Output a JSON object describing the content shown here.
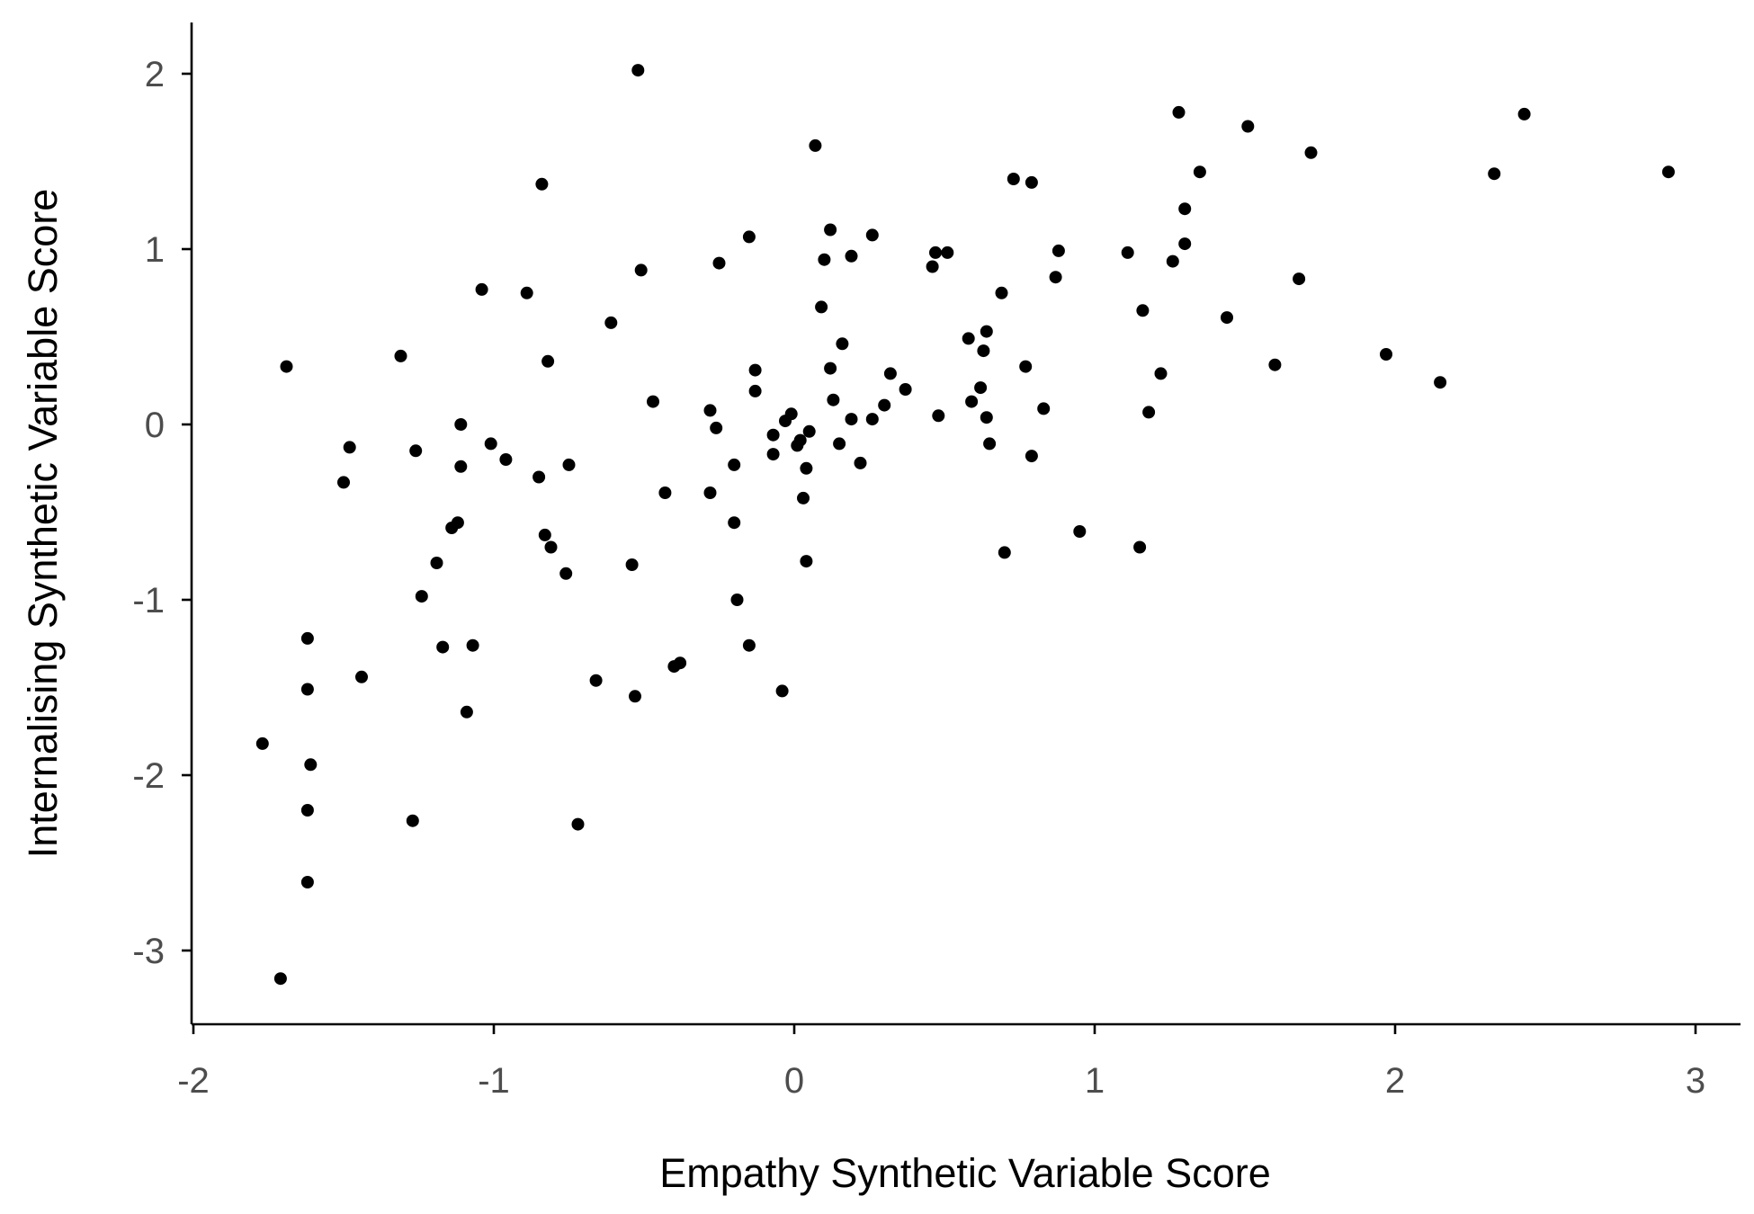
{
  "chart_data": {
    "type": "scatter",
    "title": "",
    "xlabel": "Empathy Synthetic Variable Score",
    "ylabel": "Internalising Synthetic Variable Score",
    "xlim": [
      -2.0,
      3.15
    ],
    "ylim": [
      -3.42,
      2.28
    ],
    "xticks": [
      -2,
      -1,
      0,
      1,
      2,
      3
    ],
    "xtick_labels": [
      "-2",
      "-1",
      "0",
      "1",
      "2",
      "3"
    ],
    "yticks": [
      2,
      1,
      0,
      -1,
      -2,
      -3
    ],
    "ytick_labels": [
      "2",
      "1",
      "0",
      "-1",
      "-2",
      "-3"
    ],
    "grid": false,
    "legend": "none",
    "point_color": "#000000",
    "series": [
      {
        "points": [
          [
            -0.52,
            2.02
          ],
          [
            -0.84,
            1.37
          ],
          [
            0.07,
            1.59
          ],
          [
            -0.51,
            0.88
          ],
          [
            -0.15,
            1.07
          ],
          [
            0.12,
            1.11
          ],
          [
            0.26,
            1.08
          ],
          [
            -0.25,
            0.92
          ],
          [
            0.1,
            0.94
          ],
          [
            0.19,
            0.96
          ],
          [
            0.46,
            0.9
          ],
          [
            0.47,
            0.98
          ],
          [
            0.51,
            0.98
          ],
          [
            0.73,
            1.4
          ],
          [
            0.79,
            1.38
          ],
          [
            1.28,
            1.78
          ],
          [
            1.51,
            1.7
          ],
          [
            1.35,
            1.44
          ],
          [
            1.3,
            1.23
          ],
          [
            1.3,
            1.03
          ],
          [
            1.26,
            0.93
          ],
          [
            1.11,
            0.98
          ],
          [
            0.88,
            0.99
          ],
          [
            0.87,
            0.84
          ],
          [
            1.68,
            0.83
          ],
          [
            1.72,
            1.55
          ],
          [
            2.43,
            1.77
          ],
          [
            2.33,
            1.43
          ],
          [
            2.91,
            1.44
          ],
          [
            1.97,
            0.4
          ],
          [
            2.15,
            0.24
          ],
          [
            1.6,
            0.34
          ],
          [
            1.44,
            0.61
          ],
          [
            1.16,
            0.65
          ],
          [
            1.22,
            0.29
          ],
          [
            1.18,
            0.07
          ],
          [
            -1.69,
            0.33
          ],
          [
            -1.31,
            0.39
          ],
          [
            -1.04,
            0.77
          ],
          [
            -0.89,
            0.75
          ],
          [
            -0.82,
            0.36
          ],
          [
            -0.61,
            0.58
          ],
          [
            -0.47,
            0.13
          ],
          [
            -1.48,
            -0.13
          ],
          [
            -1.5,
            -0.33
          ],
          [
            -1.26,
            -0.15
          ],
          [
            -1.11,
            0.0
          ],
          [
            -1.11,
            -0.24
          ],
          [
            -1.01,
            -0.11
          ],
          [
            -0.96,
            -0.2
          ],
          [
            -0.85,
            -0.3
          ],
          [
            -0.75,
            -0.23
          ],
          [
            -1.12,
            -0.56
          ],
          [
            -1.14,
            -0.59
          ],
          [
            -0.83,
            -0.63
          ],
          [
            -0.81,
            -0.7
          ],
          [
            -1.19,
            -0.79
          ],
          [
            -0.76,
            -0.85
          ],
          [
            -1.24,
            -0.98
          ],
          [
            -0.43,
            -0.39
          ],
          [
            -0.28,
            -0.39
          ],
          [
            -0.28,
            0.08
          ],
          [
            -0.26,
            -0.02
          ],
          [
            -0.2,
            -0.23
          ],
          [
            -0.2,
            -0.56
          ],
          [
            -0.54,
            -0.8
          ],
          [
            -0.19,
            -1.0
          ],
          [
            -0.13,
            0.31
          ],
          [
            -0.13,
            0.19
          ],
          [
            -0.07,
            -0.06
          ],
          [
            -0.07,
            -0.17
          ],
          [
            -0.03,
            0.02
          ],
          [
            -0.01,
            0.06
          ],
          [
            0.01,
            -0.12
          ],
          [
            0.02,
            -0.09
          ],
          [
            0.05,
            -0.04
          ],
          [
            0.04,
            -0.25
          ],
          [
            0.03,
            -0.42
          ],
          [
            0.04,
            -0.78
          ],
          [
            0.09,
            0.67
          ],
          [
            0.12,
            0.32
          ],
          [
            0.13,
            0.14
          ],
          [
            0.16,
            0.46
          ],
          [
            0.15,
            -0.11
          ],
          [
            0.19,
            0.03
          ],
          [
            0.22,
            -0.22
          ],
          [
            0.26,
            0.03
          ],
          [
            0.3,
            0.11
          ],
          [
            0.32,
            0.29
          ],
          [
            0.37,
            0.2
          ],
          [
            0.48,
            0.05
          ],
          [
            0.58,
            0.49
          ],
          [
            0.59,
            0.13
          ],
          [
            0.62,
            0.21
          ],
          [
            0.63,
            0.42
          ],
          [
            0.64,
            0.53
          ],
          [
            0.64,
            0.04
          ],
          [
            0.65,
            -0.11
          ],
          [
            0.69,
            0.75
          ],
          [
            0.77,
            0.33
          ],
          [
            0.79,
            -0.18
          ],
          [
            0.83,
            0.09
          ],
          [
            0.7,
            -0.73
          ],
          [
            0.95,
            -0.61
          ],
          [
            1.15,
            -0.7
          ],
          [
            -1.62,
            -1.22
          ],
          [
            -1.62,
            -1.51
          ],
          [
            -1.44,
            -1.44
          ],
          [
            -1.17,
            -1.27
          ],
          [
            -1.07,
            -1.26
          ],
          [
            -1.09,
            -1.64
          ],
          [
            -0.66,
            -1.46
          ],
          [
            -0.53,
            -1.55
          ],
          [
            -0.4,
            -1.38
          ],
          [
            -0.38,
            -1.36
          ],
          [
            -0.15,
            -1.26
          ],
          [
            -0.04,
            -1.52
          ],
          [
            -1.77,
            -1.82
          ],
          [
            -1.61,
            -1.94
          ],
          [
            -1.62,
            -2.2
          ],
          [
            -1.27,
            -2.26
          ],
          [
            -0.72,
            -2.28
          ],
          [
            -1.62,
            -2.61
          ],
          [
            -1.71,
            -3.16
          ]
        ]
      }
    ]
  }
}
